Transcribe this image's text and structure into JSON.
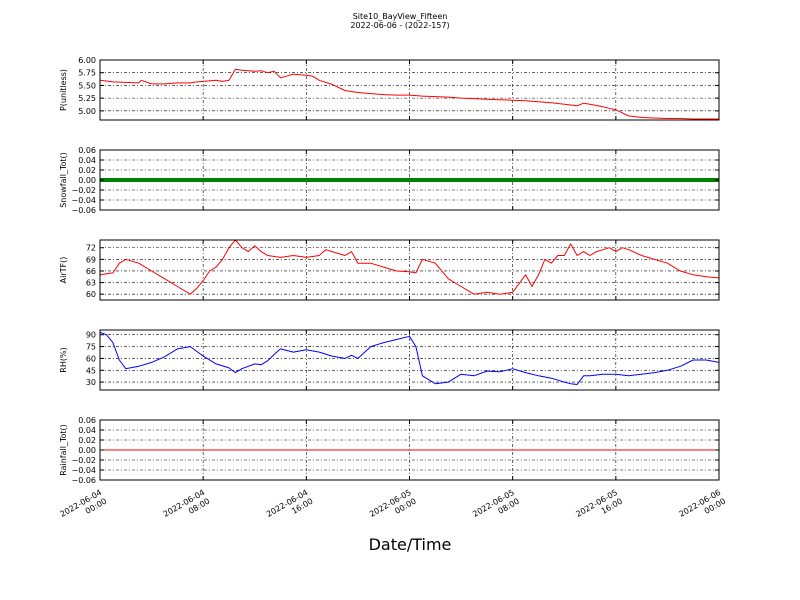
{
  "figure": {
    "title_line1": "Site10_BayView_Fifteen",
    "title_line2": "2022-06-06 - (2022-157)",
    "xlabel": "Date/Time",
    "x_ticks": [
      {
        "hour": 0,
        "line1": "2022-06-04",
        "line2": "00:00"
      },
      {
        "hour": 8,
        "line1": "2022-06-04",
        "line2": "08:00"
      },
      {
        "hour": 16,
        "line1": "2022-06-04",
        "line2": "16:00"
      },
      {
        "hour": 24,
        "line1": "2022-06-05",
        "line2": "00:00"
      },
      {
        "hour": 32,
        "line1": "2022-06-05",
        "line2": "08:00"
      },
      {
        "hour": 40,
        "line1": "2022-06-05",
        "line2": "16:00"
      },
      {
        "hour": 48,
        "line1": "2022-06-06",
        "line2": "00:00"
      }
    ]
  },
  "chart_data": [
    {
      "type": "line",
      "ylabel": "P(unitless)",
      "xlim_hours": [
        0,
        48
      ],
      "ylim": [
        4.82,
        6.0
      ],
      "yticks": [
        "6.00",
        "5.75",
        "5.50",
        "5.25",
        "5.00"
      ],
      "ytick_values": [
        6.0,
        5.75,
        5.5,
        5.25,
        5.0
      ],
      "grid": true,
      "color": "#ff0000",
      "x": [
        0,
        1,
        2,
        3,
        3.2,
        4,
        5,
        6,
        7,
        7.5,
        8,
        9,
        9.5,
        10,
        10.5,
        11,
        12,
        12.5,
        13,
        13.5,
        14,
        15,
        16,
        16.5,
        17,
        18,
        19,
        20,
        21,
        22,
        23,
        24,
        25,
        26,
        27,
        28,
        29,
        30,
        31,
        32,
        33,
        34,
        35,
        36,
        37,
        37.5,
        38,
        39,
        40,
        41,
        42,
        43,
        44,
        45,
        46,
        47,
        48
      ],
      "y": [
        5.6,
        5.57,
        5.56,
        5.55,
        5.6,
        5.53,
        5.53,
        5.55,
        5.55,
        5.57,
        5.58,
        5.6,
        5.58,
        5.6,
        5.82,
        5.8,
        5.78,
        5.79,
        5.75,
        5.78,
        5.65,
        5.72,
        5.7,
        5.68,
        5.6,
        5.52,
        5.4,
        5.36,
        5.34,
        5.32,
        5.31,
        5.31,
        5.29,
        5.28,
        5.27,
        5.25,
        5.24,
        5.23,
        5.22,
        5.21,
        5.2,
        5.18,
        5.16,
        5.13,
        5.1,
        5.15,
        5.13,
        5.08,
        5.02,
        4.9,
        4.87,
        4.86,
        4.85,
        4.85,
        4.84,
        4.84,
        4.84
      ]
    },
    {
      "type": "line",
      "ylabel": "Snowfall_Tot()",
      "xlim_hours": [
        0,
        48
      ],
      "ylim": [
        -0.06,
        0.06
      ],
      "yticks": [
        "0.06",
        "0.04",
        "0.02",
        "0.00",
        "−0.02",
        "−0.04",
        "−0.06"
      ],
      "ytick_values": [
        0.06,
        0.04,
        0.02,
        0.0,
        -0.02,
        -0.04,
        -0.06
      ],
      "grid": true,
      "color": "#008000",
      "x": [
        0,
        48
      ],
      "y": [
        0,
        0
      ]
    },
    {
      "type": "line",
      "ylabel": "AirTF()",
      "xlim_hours": [
        0,
        48
      ],
      "ylim": [
        58.5,
        74
      ],
      "yticks": [
        "72",
        "69",
        "66",
        "63",
        "60"
      ],
      "ytick_values": [
        72,
        69,
        66,
        63,
        60
      ],
      "grid": true,
      "color": "#ff0000",
      "x": [
        0,
        1,
        1.5,
        2,
        3,
        4,
        5,
        6,
        7,
        7.5,
        8,
        8.5,
        9,
        9.5,
        10,
        10.5,
        11,
        11.5,
        12,
        12.5,
        13,
        14,
        15,
        16,
        17,
        17.5,
        18,
        19,
        19.5,
        20,
        21,
        22,
        23,
        24,
        24.5,
        25,
        26,
        27,
        28,
        29,
        30,
        31,
        32,
        33,
        33.5,
        34,
        34.5,
        35,
        35.5,
        36,
        36.5,
        37,
        37.5,
        38,
        38.5,
        39,
        39.5,
        40,
        40.5,
        41,
        42,
        43,
        44,
        45,
        46,
        47,
        48
      ],
      "y": [
        65,
        65.5,
        68,
        69,
        68,
        66,
        64,
        62,
        60,
        61.5,
        63.5,
        66,
        67,
        69,
        72,
        74,
        72,
        71,
        72.5,
        71,
        70,
        69.5,
        70,
        69.5,
        70,
        71.5,
        71,
        70,
        71,
        68,
        68,
        67,
        66,
        65.8,
        65.5,
        69,
        68,
        64,
        62,
        60,
        60.5,
        60,
        60.5,
        65,
        62,
        65,
        69,
        68,
        70,
        70,
        73,
        70,
        71,
        70,
        71,
        71.5,
        72,
        71,
        72,
        71.5,
        70,
        69,
        68,
        66,
        65,
        64.5,
        64.2
      ]
    },
    {
      "type": "line",
      "ylabel": "RH(%)",
      "xlim_hours": [
        0,
        48
      ],
      "ylim": [
        20,
        96
      ],
      "yticks": [
        "90",
        "75",
        "60",
        "45",
        "30"
      ],
      "ytick_values": [
        90,
        75,
        60,
        45,
        30
      ],
      "grid": true,
      "color": "#0000ff",
      "x": [
        0,
        0.5,
        1,
        1.5,
        2,
        3,
        4,
        5,
        6,
        7,
        8,
        9,
        10,
        10.5,
        11,
        12,
        12.5,
        13,
        13.5,
        14,
        15,
        16,
        17,
        18,
        19,
        19.5,
        20,
        21,
        22,
        23,
        24,
        24.5,
        25,
        26,
        27,
        28,
        29,
        30,
        31,
        32,
        33,
        34,
        35,
        36,
        36.5,
        37,
        37.5,
        38,
        39,
        40,
        41,
        42,
        43,
        44,
        45,
        46,
        47,
        48
      ],
      "y": [
        93,
        90,
        80,
        58,
        47,
        50,
        55,
        62,
        72,
        75,
        63,
        53,
        48,
        42,
        47,
        53,
        52,
        57,
        65,
        72,
        68,
        71,
        68,
        63,
        60,
        64,
        60,
        75,
        80,
        84,
        88,
        75,
        38,
        28,
        30,
        40,
        38,
        44,
        43,
        47,
        42,
        38,
        35,
        30,
        28,
        27,
        38,
        38,
        40,
        40,
        38,
        40,
        42,
        45,
        50,
        58,
        58,
        55
      ]
    },
    {
      "type": "line",
      "ylabel": "Rainfall_Tot()",
      "xlim_hours": [
        0,
        48
      ],
      "ylim": [
        -0.06,
        0.06
      ],
      "yticks": [
        "0.06",
        "0.04",
        "0.02",
        "0.00",
        "−0.02",
        "−0.04",
        "−0.06"
      ],
      "ytick_values": [
        0.06,
        0.04,
        0.02,
        0.0,
        -0.02,
        -0.04,
        -0.06
      ],
      "grid": true,
      "color": "#ff0000",
      "x": [
        0,
        48
      ],
      "y": [
        0,
        0
      ]
    }
  ]
}
